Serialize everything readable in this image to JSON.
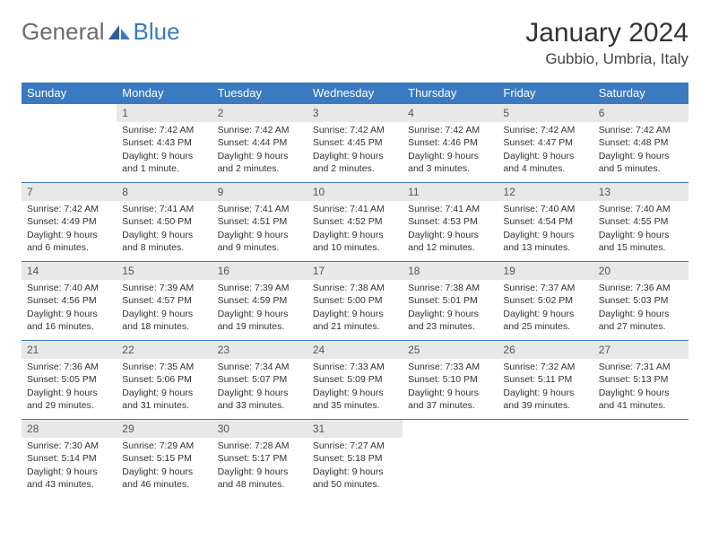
{
  "logo": {
    "general": "General",
    "blue": "Blue"
  },
  "title": "January 2024",
  "location": "Gubbio, Umbria, Italy",
  "colors": {
    "header_bg": "#3a7ac0",
    "header_fg": "#ffffff",
    "daynum_bg": "#e8e8e8",
    "border": "#3a7ac0",
    "text": "#333333"
  },
  "daynames": [
    "Sunday",
    "Monday",
    "Tuesday",
    "Wednesday",
    "Thursday",
    "Friday",
    "Saturday"
  ],
  "weeks": [
    [
      null,
      {
        "n": "1",
        "sr": "Sunrise: 7:42 AM",
        "ss": "Sunset: 4:43 PM",
        "dl": "Daylight: 9 hours and 1 minute."
      },
      {
        "n": "2",
        "sr": "Sunrise: 7:42 AM",
        "ss": "Sunset: 4:44 PM",
        "dl": "Daylight: 9 hours and 2 minutes."
      },
      {
        "n": "3",
        "sr": "Sunrise: 7:42 AM",
        "ss": "Sunset: 4:45 PM",
        "dl": "Daylight: 9 hours and 2 minutes."
      },
      {
        "n": "4",
        "sr": "Sunrise: 7:42 AM",
        "ss": "Sunset: 4:46 PM",
        "dl": "Daylight: 9 hours and 3 minutes."
      },
      {
        "n": "5",
        "sr": "Sunrise: 7:42 AM",
        "ss": "Sunset: 4:47 PM",
        "dl": "Daylight: 9 hours and 4 minutes."
      },
      {
        "n": "6",
        "sr": "Sunrise: 7:42 AM",
        "ss": "Sunset: 4:48 PM",
        "dl": "Daylight: 9 hours and 5 minutes."
      }
    ],
    [
      {
        "n": "7",
        "sr": "Sunrise: 7:42 AM",
        "ss": "Sunset: 4:49 PM",
        "dl": "Daylight: 9 hours and 6 minutes."
      },
      {
        "n": "8",
        "sr": "Sunrise: 7:41 AM",
        "ss": "Sunset: 4:50 PM",
        "dl": "Daylight: 9 hours and 8 minutes."
      },
      {
        "n": "9",
        "sr": "Sunrise: 7:41 AM",
        "ss": "Sunset: 4:51 PM",
        "dl": "Daylight: 9 hours and 9 minutes."
      },
      {
        "n": "10",
        "sr": "Sunrise: 7:41 AM",
        "ss": "Sunset: 4:52 PM",
        "dl": "Daylight: 9 hours and 10 minutes."
      },
      {
        "n": "11",
        "sr": "Sunrise: 7:41 AM",
        "ss": "Sunset: 4:53 PM",
        "dl": "Daylight: 9 hours and 12 minutes."
      },
      {
        "n": "12",
        "sr": "Sunrise: 7:40 AM",
        "ss": "Sunset: 4:54 PM",
        "dl": "Daylight: 9 hours and 13 minutes."
      },
      {
        "n": "13",
        "sr": "Sunrise: 7:40 AM",
        "ss": "Sunset: 4:55 PM",
        "dl": "Daylight: 9 hours and 15 minutes."
      }
    ],
    [
      {
        "n": "14",
        "sr": "Sunrise: 7:40 AM",
        "ss": "Sunset: 4:56 PM",
        "dl": "Daylight: 9 hours and 16 minutes."
      },
      {
        "n": "15",
        "sr": "Sunrise: 7:39 AM",
        "ss": "Sunset: 4:57 PM",
        "dl": "Daylight: 9 hours and 18 minutes."
      },
      {
        "n": "16",
        "sr": "Sunrise: 7:39 AM",
        "ss": "Sunset: 4:59 PM",
        "dl": "Daylight: 9 hours and 19 minutes."
      },
      {
        "n": "17",
        "sr": "Sunrise: 7:38 AM",
        "ss": "Sunset: 5:00 PM",
        "dl": "Daylight: 9 hours and 21 minutes."
      },
      {
        "n": "18",
        "sr": "Sunrise: 7:38 AM",
        "ss": "Sunset: 5:01 PM",
        "dl": "Daylight: 9 hours and 23 minutes."
      },
      {
        "n": "19",
        "sr": "Sunrise: 7:37 AM",
        "ss": "Sunset: 5:02 PM",
        "dl": "Daylight: 9 hours and 25 minutes."
      },
      {
        "n": "20",
        "sr": "Sunrise: 7:36 AM",
        "ss": "Sunset: 5:03 PM",
        "dl": "Daylight: 9 hours and 27 minutes."
      }
    ],
    [
      {
        "n": "21",
        "sr": "Sunrise: 7:36 AM",
        "ss": "Sunset: 5:05 PM",
        "dl": "Daylight: 9 hours and 29 minutes."
      },
      {
        "n": "22",
        "sr": "Sunrise: 7:35 AM",
        "ss": "Sunset: 5:06 PM",
        "dl": "Daylight: 9 hours and 31 minutes."
      },
      {
        "n": "23",
        "sr": "Sunrise: 7:34 AM",
        "ss": "Sunset: 5:07 PM",
        "dl": "Daylight: 9 hours and 33 minutes."
      },
      {
        "n": "24",
        "sr": "Sunrise: 7:33 AM",
        "ss": "Sunset: 5:09 PM",
        "dl": "Daylight: 9 hours and 35 minutes."
      },
      {
        "n": "25",
        "sr": "Sunrise: 7:33 AM",
        "ss": "Sunset: 5:10 PM",
        "dl": "Daylight: 9 hours and 37 minutes."
      },
      {
        "n": "26",
        "sr": "Sunrise: 7:32 AM",
        "ss": "Sunset: 5:11 PM",
        "dl": "Daylight: 9 hours and 39 minutes."
      },
      {
        "n": "27",
        "sr": "Sunrise: 7:31 AM",
        "ss": "Sunset: 5:13 PM",
        "dl": "Daylight: 9 hours and 41 minutes."
      }
    ],
    [
      {
        "n": "28",
        "sr": "Sunrise: 7:30 AM",
        "ss": "Sunset: 5:14 PM",
        "dl": "Daylight: 9 hours and 43 minutes."
      },
      {
        "n": "29",
        "sr": "Sunrise: 7:29 AM",
        "ss": "Sunset: 5:15 PM",
        "dl": "Daylight: 9 hours and 46 minutes."
      },
      {
        "n": "30",
        "sr": "Sunrise: 7:28 AM",
        "ss": "Sunset: 5:17 PM",
        "dl": "Daylight: 9 hours and 48 minutes."
      },
      {
        "n": "31",
        "sr": "Sunrise: 7:27 AM",
        "ss": "Sunset: 5:18 PM",
        "dl": "Daylight: 9 hours and 50 minutes."
      },
      null,
      null,
      null
    ]
  ]
}
